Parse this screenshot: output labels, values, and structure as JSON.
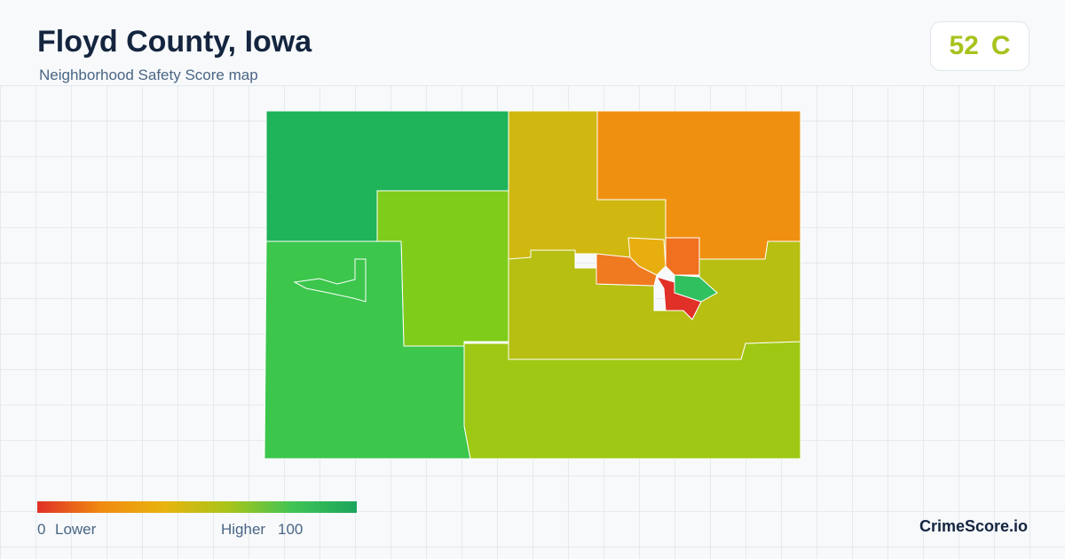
{
  "header": {
    "title": "Floyd County, Iowa",
    "subtitle": "Neighborhood Safety Score map"
  },
  "score": {
    "value": 52,
    "grade": "C"
  },
  "legend": {
    "min": 0,
    "min_label": "Lower",
    "max_label": "Higher",
    "max": 100
  },
  "brand": "CrimeScore.io"
}
